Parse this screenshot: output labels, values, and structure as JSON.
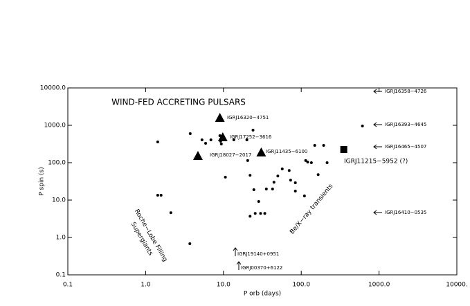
{
  "chart_data": {
    "type": "scatter",
    "title": "WIND-FED ACCRETING PULSARS",
    "x_label": "P orb (days)",
    "y_label": "P spin (s)",
    "log_x": true,
    "log_y": true,
    "xlim": [
      0.1,
      10000
    ],
    "ylim": [
      0.1,
      10000
    ],
    "xticks": [
      0.1,
      {
        "value": 1,
        "label": "1.0"
      },
      {
        "value": 10,
        "label": "10.0"
      },
      {
        "value": 100,
        "label": "100.0"
      },
      {
        "value": 1000,
        "label": "1000.0"
      },
      {
        "value": 10000,
        "label": "10000."
      }
    ],
    "yticks": [
      0.1,
      {
        "value": 1,
        "label": "1.0"
      },
      {
        "value": 10,
        "label": "10.0"
      },
      {
        "value": 100,
        "label": "100.0"
      },
      {
        "value": 1000,
        "label": "1000.0"
      },
      {
        "value": 10000,
        "label": "10000.0"
      }
    ],
    "series": [
      {
        "marker": "dot",
        "color": "#000000",
        "x": [
          1.43,
          1.43,
          1.58,
          2.11,
          3.7,
          3.74,
          5.3,
          5.9,
          6.9,
          9.0,
          9.4,
          9.2,
          10.6,
          13.6,
          20,
          24,
          20.5,
          22,
          24.6,
          25.6,
          28.4,
          30,
          34,
          35.6,
          42.8,
          44.6,
          50,
          57,
          70,
          73,
          84,
          84,
          110,
          114,
          121,
          135,
          149,
          165,
          194,
          215,
          612,
          22
        ],
        "values": [
          360,
          13.5,
          13.5,
          4.6,
          0.68,
          600,
          408,
          330,
          408,
          527,
          316,
          375,
          41,
          408,
          408,
          741,
          114,
          46,
          19,
          4.4,
          9.2,
          4.4,
          4.4,
          19.8,
          19.8,
          30,
          44,
          68,
          62,
          34,
          17.4,
          29,
          12.9,
          114,
          104,
          100,
          290,
          48,
          290,
          100,
          958,
          3.7
        ]
      },
      {
        "marker": "triangle",
        "color": "#000000",
        "x": [
          9.0,
          9.8,
          4.7,
          30.6
        ],
        "values": [
          1600,
          484,
          153,
          190
        ]
      },
      {
        "marker": "square",
        "color": "#000000",
        "x": [
          352
        ],
        "values": [
          225
        ]
      }
    ],
    "annotations": [
      "IGRJ16320−4751",
      "IGRJ17252−3616",
      "IGRJ18027−2017",
      "IGRJ11435−6100",
      "IGRJ11215−5952 (?)",
      "Roche−Lobe Filling",
      "Supergiants",
      "Be/X−ray transients"
    ],
    "limit_labels": [
      "IGRJ16358−4726",
      "IGRJ16393−4645",
      "IGRJ16465−4507",
      "IGRJ16410−0535",
      "IGRJ19140+0951",
      "IGRJ00370+6122"
    ]
  }
}
